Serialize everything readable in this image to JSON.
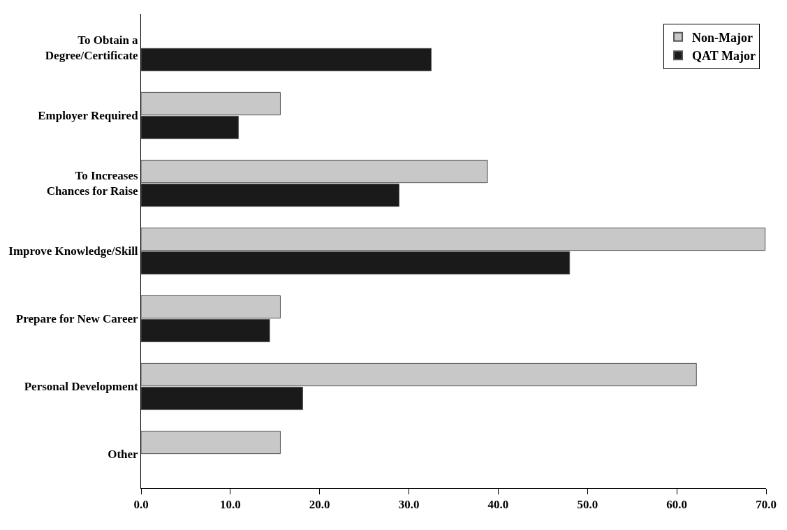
{
  "chart_data": {
    "type": "bar",
    "orientation": "horizontal",
    "categories": [
      "To Obtain a Degree/Certificate",
      "Employer Required",
      "To Increases Chances for Raise",
      "Improve Knowledge/Skill",
      "Prepare for New Career",
      "Personal Development",
      "Other"
    ],
    "series": [
      {
        "name": "Non-Major",
        "color": "#c8c8c8",
        "values": [
          null,
          15.6,
          38.8,
          69.9,
          15.6,
          62.2,
          15.6
        ]
      },
      {
        "name": "QAT Major",
        "color": "#1a1a1a",
        "values": [
          32.5,
          10.9,
          28.9,
          48.0,
          14.4,
          18.1,
          null
        ]
      }
    ],
    "xlim": [
      0,
      70
    ],
    "xticks": [
      {
        "value": 0,
        "label": "0.0"
      },
      {
        "value": 10,
        "label": "10.0"
      },
      {
        "value": 20,
        "label": "20.0"
      },
      {
        "value": 30,
        "label": "30.0"
      },
      {
        "value": 40,
        "label": "40.0"
      },
      {
        "value": 50,
        "label": "50.0"
      },
      {
        "value": 60,
        "label": "60.0"
      },
      {
        "value": 70,
        "label": "70.0"
      }
    ],
    "grid": false,
    "legend": "top right"
  }
}
